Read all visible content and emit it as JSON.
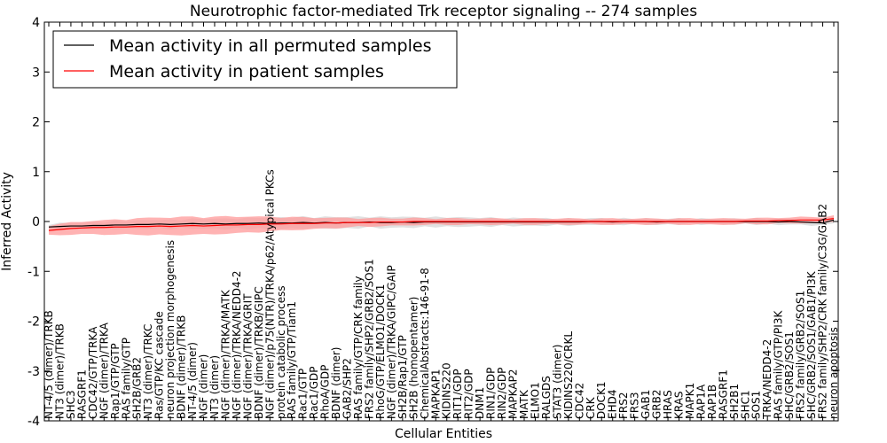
{
  "chart_data": {
    "type": "line",
    "title": "Neurotrophic factor-mediated Trk receptor signaling -- 274 samples",
    "xlabel": "Cellular Entities",
    "ylabel": "Inferred Activity",
    "ylim": [
      -4,
      4
    ],
    "yticks": [
      -4,
      -3,
      -2,
      -1,
      0,
      1,
      2,
      3,
      4
    ],
    "grid": false,
    "legend_position": "top-left",
    "categories": [
      "NT-4/5 (dimer)/TRKB",
      "NT3 (dimer)/TRKB",
      "SHC3",
      "RASGRF1",
      "CDC42/GTP/TRKA",
      "NGF (dimer)/TRKA",
      "Rap1/GTP/GTP",
      "RAS family/GTP",
      "SH2B/GRB2",
      "NT3 (dimer)/TRKC",
      "Ras/GTP/KC cascade",
      "neuron projection morphogenesis",
      "BDNF (dimer)/TRKB",
      "NT-4/5 (dimer)",
      "NGF (dimer)",
      "NT3 (dimer)",
      "NGF (dimer)/TRKA/MATK",
      "NGF (dimer)/TRKA/NEDD4-2",
      "NGF (dimer)/TRKA/GRIT",
      "BDNF (dimer)/TRKB/GIPC",
      "NGF (dimer)/p75(NTR)/TRKA/p62/Atypical PKCs",
      "protein catabolic process",
      "RAS family/GTP/Tiam1",
      "Rac1/GTP",
      "Rac1/GDP",
      "RhoA/GDP",
      "BDNF (dimer)",
      "GAB2/SHP2",
      "RAS family/GTP/CRK family",
      "FRS2 family/SHP2/GRB2/SOS1",
      "RhoG/GTP/ELMO1/DOCK1",
      "NGF (dimer)/TRKA/GIPC/GAIP",
      "SH2B/Rap1/GTP",
      "SH2B (homopentamer)",
      "ChemicalAbstracts:146-91-8",
      "MAPKAP1",
      "KIDINS220",
      "RIT1/GDP",
      "RIT2/GDP",
      "DNM1",
      "RIN1/GDP",
      "RIN2/GDP",
      "MAPKAP2",
      "MATK",
      "ELMO1",
      "RALGDS",
      "STAT3 (dimer)",
      "KIDINS220/CRKL",
      "CDC42",
      "CRK",
      "DOCK1",
      "EHD4",
      "FRS2",
      "FRS3",
      "GAB1",
      "GRB2",
      "HRAS",
      "KRAS",
      "MAPK1",
      "RAP1A",
      "RAP1B",
      "RASGRF1",
      "SH2B1",
      "SHC1",
      "SOS1",
      "TRKA/NEDD4-2",
      "RAS family/GTP/PI3K",
      "SHC/GRB2/SOS1",
      "FRS2 family/GRB2/SOS1",
      "SHC/GRB2/SOS1/GAB1/PI3K",
      "FRS2 family/SHP2/CRK family/C3G/GAB2",
      "neuron apoptosis"
    ],
    "series": [
      {
        "name": "Mean activity in all permuted samples",
        "color": "#000000",
        "values": [
          -0.11,
          -0.1,
          -0.09,
          -0.09,
          -0.08,
          -0.08,
          -0.07,
          -0.07,
          -0.06,
          -0.06,
          -0.05,
          -0.06,
          -0.05,
          -0.04,
          -0.05,
          -0.04,
          -0.05,
          -0.04,
          -0.04,
          -0.03,
          -0.04,
          -0.03,
          -0.03,
          -0.02,
          -0.03,
          -0.02,
          -0.03,
          -0.02,
          -0.02,
          -0.01,
          -0.02,
          -0.02,
          -0.01,
          -0.02,
          -0.01,
          -0.01,
          -0.01,
          -0.01,
          -0.01,
          -0.01,
          -0.01,
          -0.01,
          -0.01,
          -0.01,
          -0.01,
          -0.01,
          -0.01,
          -0.01,
          -0.01,
          0,
          0,
          -0.01,
          0,
          0,
          0,
          -0.01,
          0,
          0,
          0,
          0,
          0,
          0,
          0,
          0,
          0,
          0,
          -0.01,
          0,
          -0.01,
          -0.02,
          -0.03,
          0.03
        ]
      },
      {
        "name": "Mean activity in patient samples",
        "color": "#ff0000",
        "values": [
          -0.18,
          -0.16,
          -0.14,
          -0.13,
          -0.12,
          -0.12,
          -0.11,
          -0.11,
          -0.1,
          -0.1,
          -0.09,
          -0.1,
          -0.09,
          -0.08,
          -0.09,
          -0.08,
          -0.07,
          -0.07,
          -0.06,
          -0.06,
          -0.05,
          -0.05,
          -0.04,
          -0.04,
          -0.04,
          -0.03,
          -0.03,
          -0.02,
          -0.02,
          -0.02,
          -0.01,
          -0.01,
          -0.01,
          0,
          0,
          0,
          0,
          0,
          0,
          0,
          0,
          0,
          0,
          0,
          0,
          0,
          0,
          0,
          0,
          0,
          0,
          0,
          0,
          0,
          0,
          0,
          0,
          0,
          0,
          0,
          0,
          0,
          0,
          0.01,
          0.01,
          0.01,
          0.02,
          0.02,
          0.03,
          0.03,
          0.03,
          0.06
        ]
      }
    ]
  }
}
